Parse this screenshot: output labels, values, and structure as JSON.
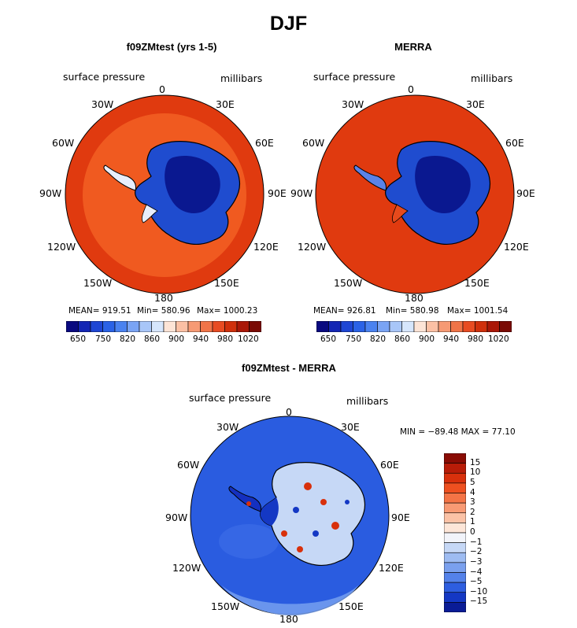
{
  "title": "DJF",
  "panels": [
    {
      "id": "model",
      "title": "f09ZMtest (yrs 1-5)",
      "variable": "surface pressure",
      "units": "millibars",
      "stats": {
        "mean": "MEAN= 919.51",
        "min": "Min= 580.96",
        "max": "Max= 1000.23"
      },
      "colorbar_labels": [
        "650",
        "750",
        "820",
        "860",
        "900",
        "940",
        "980",
        "1020"
      ],
      "colors": {
        "outer": "#e03a0f",
        "inner": "#f05a20"
      }
    },
    {
      "id": "obs",
      "title": "MERRA",
      "variable": "surface pressure",
      "units": "millibars",
      "stats": {
        "mean": "MEAN= 926.81",
        "min": "Min= 580.98",
        "max": "Max= 1001.54"
      },
      "colorbar_labels": [
        "650",
        "750",
        "820",
        "860",
        "900",
        "940",
        "980",
        "1020"
      ],
      "colors": {
        "outer": "#e03a0f",
        "inner": "#e03a0f"
      }
    },
    {
      "id": "diff",
      "title": "f09ZMtest - MERRA",
      "variable": "surface pressure",
      "units": "millibars",
      "minmax": "MIN = −89.48 MAX =  77.10",
      "colorbar_labels": [
        "15",
        "10",
        "5",
        "4",
        "3",
        "2",
        "1",
        "0",
        "−1",
        "−2",
        "−3",
        "−4",
        "−5",
        "−10",
        "−15"
      ]
    }
  ],
  "longitude_labels": {
    "top": "0",
    "l30": "30W",
    "r30": "30E",
    "l60": "60W",
    "r60": "60E",
    "l90": "90W",
    "r90": "90E",
    "l120": "120W",
    "r120": "120E",
    "l150": "150W",
    "r150": "150E",
    "bottom": "180"
  },
  "colorbar_h_colors": [
    "#0a0a80",
    "#1426b4",
    "#1e46d4",
    "#2a62e6",
    "#4a82f0",
    "#7aa4f4",
    "#a8c6f8",
    "#d6e6fc",
    "#fde4d6",
    "#fbc0a4",
    "#f69a74",
    "#f07448",
    "#e84c22",
    "#d0300c",
    "#aa1808",
    "#7a0a04"
  ],
  "colorbar_v_colors": [
    "#8a0c04",
    "#b81c08",
    "#d8300c",
    "#ee5020",
    "#f47446",
    "#f89a74",
    "#fbc2a6",
    "#fde6d8",
    "#f2f4fa",
    "#c6d8f6",
    "#9ebcf2",
    "#7aa0ee",
    "#5482ea",
    "#2e5ee0",
    "#1438c4",
    "#0a1c96"
  ]
}
